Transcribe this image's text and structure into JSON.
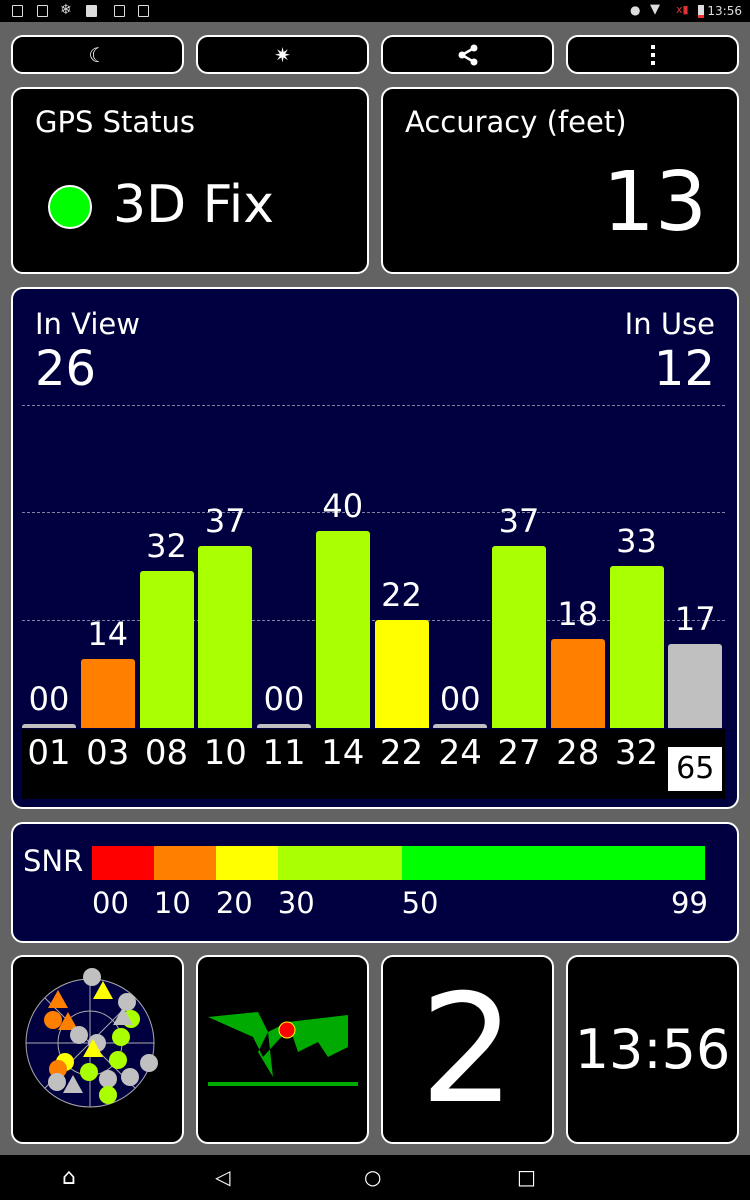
{
  "status_bar": {
    "time": "13:56"
  },
  "toolbar": {
    "buttons": [
      {
        "icon": "moon-icon"
      },
      {
        "icon": "compass-star-icon"
      },
      {
        "icon": "share-icon"
      },
      {
        "icon": "more-vert-icon"
      }
    ]
  },
  "gps_status": {
    "title": "GPS Status",
    "value": "3D Fix",
    "indicator_color": "#00ff00"
  },
  "accuracy": {
    "title": "Accuracy (feet)",
    "value": "13"
  },
  "satellites": {
    "in_view_label": "In View",
    "in_view": "26",
    "in_use_label": "In Use",
    "in_use": "12"
  },
  "chart_data": {
    "type": "bar",
    "categories": [
      "01",
      "03",
      "08",
      "10",
      "11",
      "14",
      "22",
      "24",
      "27",
      "28",
      "32",
      "65"
    ],
    "values": [
      0,
      14,
      32,
      37,
      0,
      40,
      22,
      0,
      37,
      18,
      33,
      17
    ],
    "value_labels": [
      "00",
      "14",
      "32",
      "37",
      "00",
      "40",
      "22",
      "00",
      "37",
      "18",
      "33",
      "17"
    ],
    "colors": [
      "#c0c0c0",
      "#ff8000",
      "#aaff00",
      "#aaff00",
      "#c0c0c0",
      "#aaff00",
      "#ffff00",
      "#c0c0c0",
      "#aaff00",
      "#ff8000",
      "#aaff00",
      "#c0c0c0"
    ],
    "highlighted": "65"
  },
  "snr_legend": {
    "label": "SNR",
    "ticks": [
      "00",
      "10",
      "20",
      "30",
      "50",
      "99"
    ],
    "segments": [
      {
        "from": 0,
        "to": 10,
        "color": "#ff0000"
      },
      {
        "from": 10,
        "to": 20,
        "color": "#ff8000"
      },
      {
        "from": 20,
        "to": 30,
        "color": "#ffff00"
      },
      {
        "from": 30,
        "to": 50,
        "color": "#aaff00"
      },
      {
        "from": 50,
        "to": 99,
        "color": "#00ff00"
      }
    ]
  },
  "tiles": {
    "count": "2",
    "clock": "13:56"
  }
}
